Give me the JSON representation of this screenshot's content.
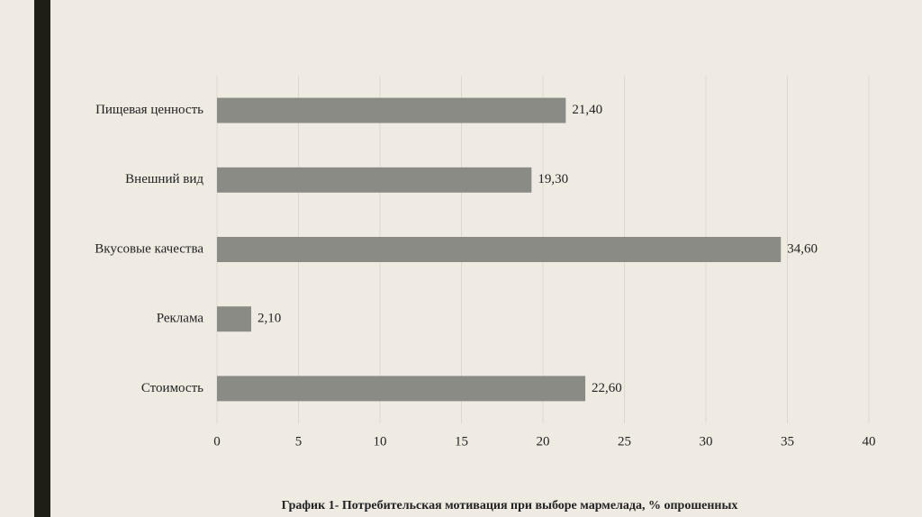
{
  "chart_data": {
    "type": "bar",
    "orientation": "horizontal",
    "title": "График 1- Потребительская мотивация при выборе мармелада, % опрошенных",
    "categories": [
      "Пищевая ценность",
      "Внешний вид",
      "Вкусовые качества",
      "Реклама",
      "Стоимость"
    ],
    "values": [
      21.4,
      19.3,
      34.6,
      2.1,
      22.6
    ],
    "value_labels": [
      "21,40",
      "19,30",
      "34,60",
      "2,10",
      "22,60"
    ],
    "color": "#8b8b86",
    "xlim": [
      0,
      40
    ],
    "xticks": [
      0,
      5,
      10,
      15,
      20,
      25,
      30,
      35,
      40
    ],
    "grid": true
  }
}
